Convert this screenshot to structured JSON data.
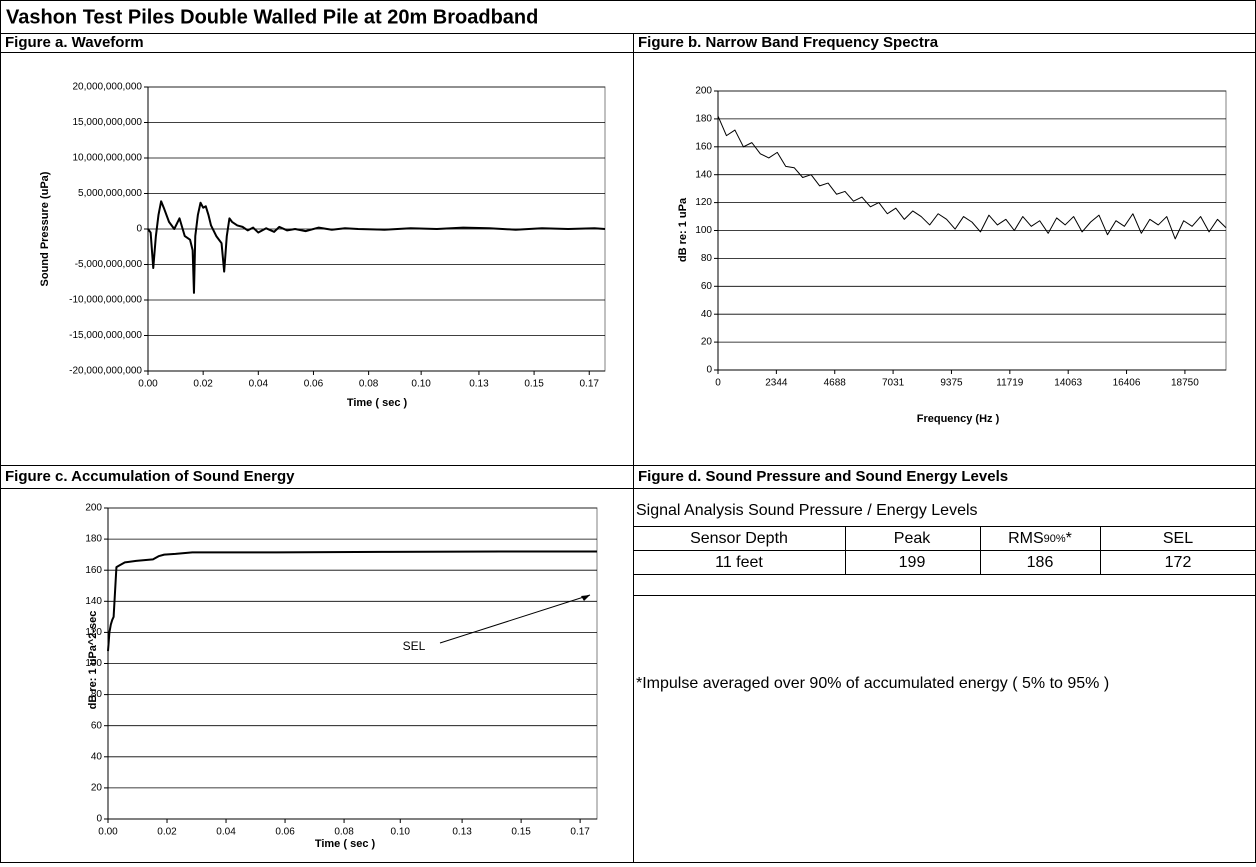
{
  "title": "Vashon Test Piles Double Walled Pile at 20m Broadband",
  "headings": [
    "Figure a. Waveform",
    "Figure b. Narrow Band Frequency Spectra",
    "Figure c. Accumulation of Sound Energy",
    "Figure d. Sound Pressure and Sound Energy Levels"
  ],
  "chart_data": [
    {
      "type": "line",
      "x_label": "Time ( sec )",
      "y_label": "Sound Pressure (uPa)",
      "color": "#000000",
      "grid": true,
      "x": [
        0,
        0.001,
        0.002,
        0.003,
        0.004,
        0.005,
        0.006,
        0.008,
        0.01,
        0.012,
        0.014,
        0.016,
        0.017,
        0.0175,
        0.018,
        0.019,
        0.02,
        0.021,
        0.022,
        0.023,
        0.024,
        0.026,
        0.028,
        0.029,
        0.03,
        0.031,
        0.032,
        0.034,
        0.036,
        0.038,
        0.04,
        0.042,
        0.045,
        0.048,
        0.05,
        0.053,
        0.056,
        0.06,
        0.065,
        0.07,
        0.075,
        0.08,
        0.09,
        0.1,
        0.11,
        0.12,
        0.13,
        0.14,
        0.15,
        0.16,
        0.17,
        0.174
      ],
      "values": [
        0,
        -500000000.0,
        -5500000000.0,
        -1000000000.0,
        2000000000.0,
        3900000000.0,
        3000000000.0,
        1000000000.0,
        0,
        1500000000.0,
        -1000000000.0,
        -1500000000.0,
        -3000000000.0,
        -9000000000.0,
        -1000000000.0,
        2000000000.0,
        3700000000.0,
        3000000000.0,
        3200000000.0,
        2000000000.0,
        500000000.0,
        -1000000000.0,
        -2000000000.0,
        -6000000000.0,
        -1000000000.0,
        1500000000.0,
        1000000000.0,
        500000000.0,
        300000000.0,
        -200000000.0,
        200000000.0,
        -500000000.0,
        100000000.0,
        -400000000.0,
        300000000.0,
        -200000000.0,
        0,
        -300000000.0,
        200000000.0,
        -100000000.0,
        100000000.0,
        0,
        -100000000.0,
        100000000.0,
        0,
        200000000.0,
        100000000.0,
        -100000000.0,
        100000000.0,
        0,
        100000000.0,
        0
      ],
      "xlim": [
        0,
        0.174
      ],
      "xticks": [
        {
          "value": 0,
          "label": "0.00"
        },
        {
          "value": 0.021,
          "label": "0.02"
        },
        {
          "value": 0.042,
          "label": "0.04"
        },
        {
          "value": 0.063,
          "label": "0.06"
        },
        {
          "value": 0.084,
          "label": "0.08"
        },
        {
          "value": 0.104,
          "label": "0.10"
        },
        {
          "value": 0.126,
          "label": "0.13"
        },
        {
          "value": 0.147,
          "label": "0.15"
        },
        {
          "value": 0.168,
          "label": "0.17"
        }
      ],
      "ylim": [
        -20000000000,
        20000000000
      ],
      "yticks": [
        {
          "value": -20000000000,
          "label": "-20,000,000,000"
        },
        {
          "value": -15000000000,
          "label": "-15,000,000,000"
        },
        {
          "value": -10000000000,
          "label": "-10,000,000,000"
        },
        {
          "value": -5000000000,
          "label": "-5,000,000,000"
        },
        0,
        {
          "value": 5000000000,
          "label": "5,000,000,000"
        },
        {
          "value": 10000000000,
          "label": "10,000,000,000"
        },
        {
          "value": 15000000000,
          "label": "15,000,000,000"
        },
        {
          "value": 20000000000,
          "label": "20,000,000,000"
        }
      ]
    },
    {
      "type": "line",
      "x_label": "Frequency (Hz )",
      "y_label": "dB re: 1 uPa",
      "color": "#000000",
      "grid": true,
      "x": [
        0,
        340,
        680,
        1020,
        1360,
        1700,
        2040,
        2380,
        2720,
        3060,
        3400,
        3740,
        4080,
        4420,
        4760,
        5100,
        5440,
        5780,
        6120,
        6460,
        6800,
        7140,
        7480,
        7820,
        8160,
        8500,
        8840,
        9180,
        9520,
        9860,
        10200,
        10540,
        10880,
        11220,
        11560,
        11900,
        12240,
        12580,
        12920,
        13260,
        13600,
        13940,
        14280,
        14620,
        14960,
        15300,
        15640,
        15980,
        16320,
        16660,
        17000,
        17340,
        17680,
        18020,
        18360,
        18700,
        19040,
        19380,
        19720,
        20060,
        20400
      ],
      "values": [
        182,
        168,
        172,
        160,
        163,
        155,
        152,
        156,
        146,
        145,
        138,
        140,
        132,
        134,
        126,
        128,
        121,
        124,
        117,
        120,
        112,
        116,
        108,
        114,
        110,
        104,
        112,
        108,
        101,
        110,
        106,
        99,
        111,
        104,
        108,
        100,
        110,
        103,
        107,
        98,
        109,
        104,
        110,
        99,
        106,
        111,
        97,
        107,
        103,
        112,
        98,
        108,
        104,
        110,
        94,
        107,
        103,
        110,
        99,
        108,
        102
      ],
      "xlim": [
        0,
        20400
      ],
      "xticks": [
        0,
        2344,
        4688,
        7031,
        9375,
        11719,
        14063,
        16406,
        18750
      ],
      "ylim": [
        0,
        200
      ],
      "yticks": [
        0,
        20,
        40,
        60,
        80,
        100,
        120,
        140,
        160,
        180,
        200
      ]
    },
    {
      "type": "line",
      "x_label": "Time ( sec )",
      "y_label": "dB re: 1 uPa^2-sec",
      "color": "#000000",
      "grid": true,
      "annotation": "SEL",
      "x": [
        0,
        0.0005,
        0.001,
        0.0015,
        0.002,
        0.003,
        0.004,
        0.006,
        0.01,
        0.016,
        0.018,
        0.02,
        0.024,
        0.03,
        0.04,
        0.06,
        0.1,
        0.14,
        0.174
      ],
      "values": [
        108,
        120,
        125,
        128,
        130,
        162,
        163,
        165,
        166,
        167,
        169,
        170,
        170.5,
        171.5,
        171.5,
        171.5,
        171.8,
        172,
        172
      ],
      "xlim": [
        0,
        0.174
      ],
      "xticks": [
        {
          "value": 0,
          "label": "0.00"
        },
        {
          "value": 0.021,
          "label": "0.02"
        },
        {
          "value": 0.042,
          "label": "0.04"
        },
        {
          "value": 0.063,
          "label": "0.06"
        },
        {
          "value": 0.084,
          "label": "0.08"
        },
        {
          "value": 0.104,
          "label": "0.10"
        },
        {
          "value": 0.126,
          "label": "0.13"
        },
        {
          "value": 0.147,
          "label": "0.15"
        },
        {
          "value": 0.168,
          "label": "0.17"
        }
      ],
      "ylim": [
        0,
        200
      ],
      "yticks": [
        0,
        20,
        40,
        60,
        80,
        100,
        120,
        140,
        160,
        180,
        200
      ]
    }
  ],
  "table": {
    "title": "Signal Analysis Sound Pressure / Energy Levels",
    "headers": [
      "Sensor Depth",
      "Peak",
      {
        "main": "RMS",
        "sub": "90%",
        "suffix": "*"
      },
      "SEL"
    ],
    "rows": [
      [
        "11 feet",
        199,
        186,
        172
      ]
    ],
    "footnote": "*Impulse averaged over 90% of accumulated energy ( 5% to 95% )"
  }
}
